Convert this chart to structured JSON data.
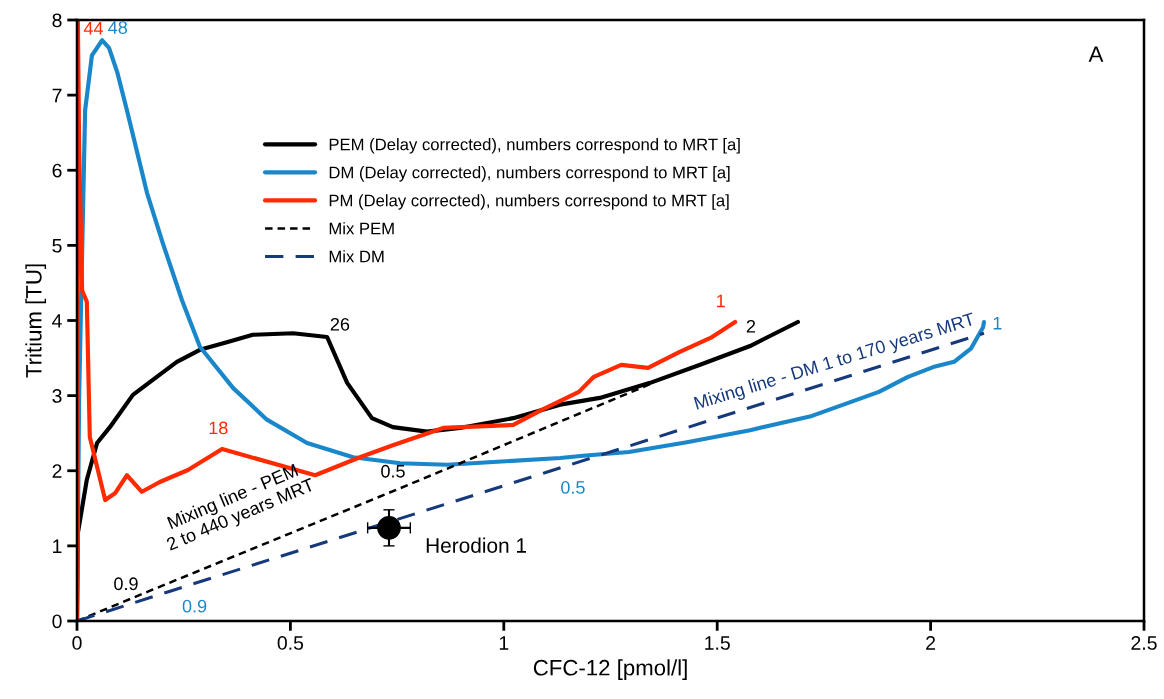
{
  "chart_data": {
    "type": "line",
    "xlabel": "CFC-12 [pmol/l]",
    "ylabel": "Tritium [TU]",
    "xlim": [
      0,
      2.5
    ],
    "ylim": [
      0,
      8
    ],
    "xticks": [
      0,
      0.5,
      1,
      1.5,
      2,
      2.5
    ],
    "yticks": [
      0,
      1,
      2,
      3,
      4,
      5,
      6,
      7,
      8
    ],
    "grid": false,
    "legend": "top",
    "series": [
      {
        "name": "PEM (Delay corrected), numbers correspond to MRT [a]",
        "color": "#000000",
        "line_style": "solid",
        "x": [
          0,
          0.002,
          0.007,
          0.023,
          0.047,
          0.077,
          0.131,
          0.187,
          0.234,
          0.288,
          0.351,
          0.412,
          0.506,
          0.586,
          0.633,
          0.691,
          0.74,
          0.82,
          0.897,
          1.022,
          1.132,
          1.225,
          1.343,
          1.46,
          1.577,
          1.689
        ],
        "values": [
          0,
          1.17,
          1.34,
          1.88,
          2.37,
          2.58,
          3.01,
          3.25,
          3.45,
          3.61,
          3.71,
          3.81,
          3.83,
          3.78,
          3.17,
          2.7,
          2.58,
          2.52,
          2.57,
          2.7,
          2.88,
          2.97,
          3.17,
          3.41,
          3.66,
          3.98
        ]
      },
      {
        "name": "DM (Delay corrected), numbers correspond to MRT [a]",
        "color": "#1a87cb",
        "line_style": "solid",
        "x": [
          0,
          0.005,
          0.019,
          0.035,
          0.059,
          0.075,
          0.094,
          0.117,
          0.164,
          0.201,
          0.246,
          0.288,
          0.366,
          0.445,
          0.539,
          0.647,
          0.757,
          0.867,
          1.132,
          1.186,
          1.293,
          1.429,
          1.577,
          1.722,
          1.879,
          1.947,
          2.006,
          2.055,
          2.095,
          2.123,
          2.125
        ],
        "values": [
          0,
          3.0,
          6.8,
          7.53,
          7.73,
          7.63,
          7.31,
          6.8,
          5.7,
          5.03,
          4.27,
          3.65,
          3.1,
          2.68,
          2.37,
          2.18,
          2.1,
          2.08,
          2.17,
          2.2,
          2.25,
          2.38,
          2.54,
          2.73,
          3.05,
          3.25,
          3.38,
          3.45,
          3.63,
          3.91,
          3.98
        ]
      },
      {
        "name": "PM (Delay corrected), numbers correspond to MRT [a]",
        "color": "#ff2a00",
        "line_style": "solid",
        "x": [
          0,
          0.002,
          0.005,
          0.012,
          0.023,
          0.03,
          0.066,
          0.089,
          0.117,
          0.152,
          0.194,
          0.26,
          0.34,
          0.558,
          0.663,
          0.74,
          0.858,
          1.022,
          1.089,
          1.176,
          1.211,
          1.275,
          1.338,
          1.411,
          1.488,
          1.542
        ],
        "values": [
          0,
          8,
          6.3,
          4.4,
          4.25,
          2.45,
          1.61,
          1.7,
          1.94,
          1.72,
          1.85,
          2.01,
          2.29,
          1.94,
          2.18,
          2.34,
          2.57,
          2.61,
          2.81,
          3.05,
          3.25,
          3.41,
          3.37,
          3.58,
          3.78,
          3.98
        ]
      },
      {
        "name": "Mix PEM",
        "color": "#000000",
        "line_style": "dotted",
        "x": [
          0,
          0.17,
          0.75,
          1.35
        ],
        "values": [
          0,
          0.4,
          1.75,
          3.17
        ]
      },
      {
        "name": "Mix DM",
        "color": "#15397a",
        "line_style": "dashed",
        "x": [
          0,
          0.22,
          1.1,
          2.125
        ],
        "values": [
          0,
          0.4,
          1.98,
          3.83
        ]
      },
      {
        "name": "Herodion 1",
        "type": "scatter",
        "color": "#000000",
        "marker": "circle",
        "x": [
          0.731
        ],
        "values": [
          1.24
        ],
        "errors": [
          0.24
        ],
        "xerrors": [
          0.05
        ]
      }
    ],
    "annotations": [
      {
        "text": "26",
        "x": 0.586,
        "y": 3.78
      },
      {
        "text": "2",
        "x": 1.577,
        "y": 3.66
      },
      {
        "text": "48",
        "x": 0.059,
        "y": 7.73
      },
      {
        "text": "1",
        "x": 2.125,
        "y": 3.98
      },
      {
        "text": "44",
        "x": 0.002,
        "y": 8
      },
      {
        "text": "18",
        "x": 0.34,
        "y": 2.29
      },
      {
        "text": "1",
        "x": 1.542,
        "y": 3.98
      },
      {
        "text": "0.9",
        "x": 0.17,
        "y": 0.4
      },
      {
        "text": "0.5",
        "x": 0.75,
        "y": 1.75
      },
      {
        "text": "0.9",
        "x": 0.22,
        "y": 0.4
      },
      {
        "text": "0.5",
        "x": 1.1,
        "y": 1.98
      },
      "Mixing line - PEM\n2 to 440 years MRT",
      "Mixing line - DM 1 to 170 years MRT",
      "A"
    ]
  }
}
